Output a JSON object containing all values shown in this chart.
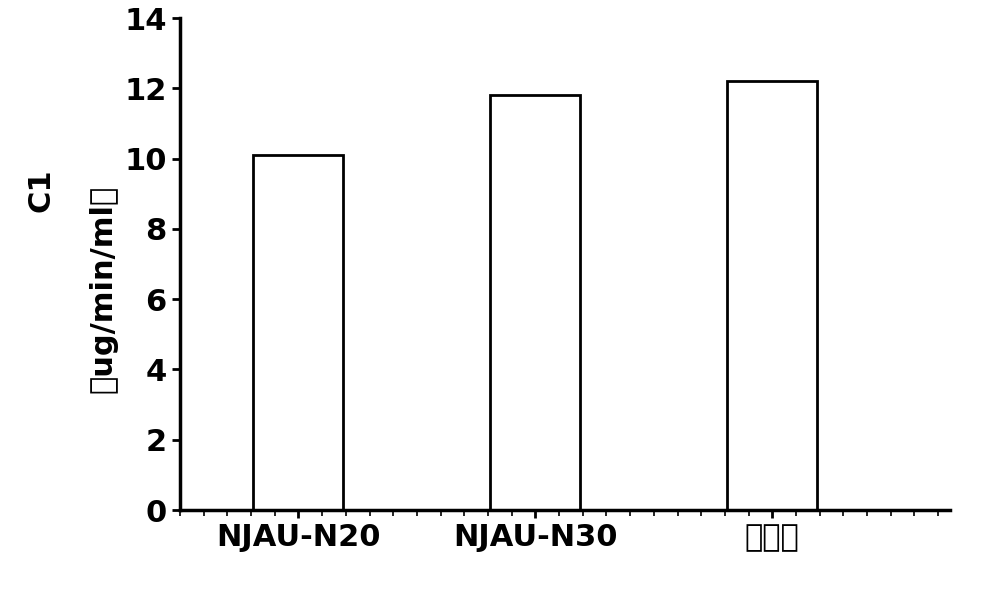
{
  "categories": [
    "NJAU-N20",
    "NJAU-N30",
    "组合菌"
  ],
  "values": [
    10.1,
    11.8,
    12.2
  ],
  "bar_color": "#ffffff",
  "bar_edgecolor": "#000000",
  "bar_linewidth": 2.0,
  "bar_width": 0.38,
  "bar_positions": [
    1,
    2,
    3
  ],
  "ylabel_top": "C1",
  "ylabel_bottom": "（ug/min/ml）",
  "ylim": [
    0,
    14
  ],
  "yticks": [
    0,
    2,
    4,
    6,
    8,
    10,
    12,
    14
  ],
  "background_color": "#ffffff",
  "tick_fontsize": 22,
  "ylabel_fontsize": 22,
  "axis_linewidth": 2.5,
  "xtick_fontweight": "bold",
  "ytick_fontweight": "bold"
}
